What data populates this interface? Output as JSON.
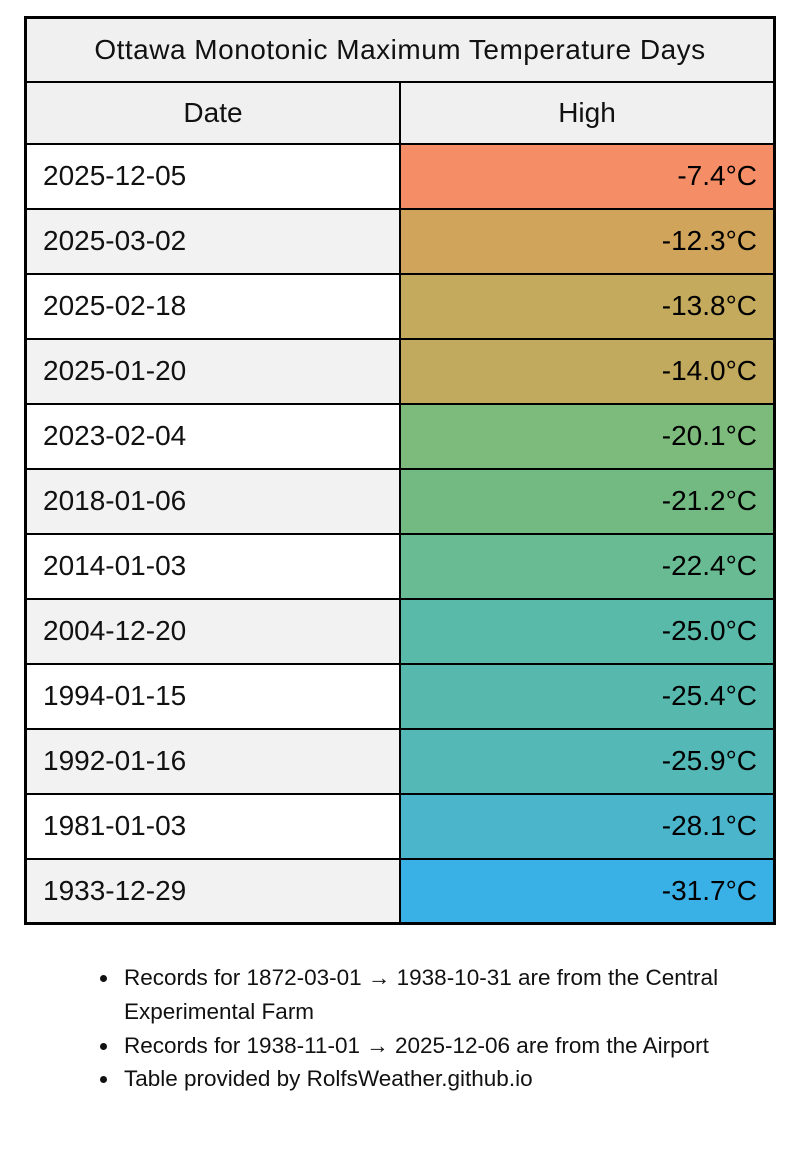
{
  "table": {
    "title": "Ottawa Monotonic Maximum Temperature Days",
    "columns": [
      "Date",
      "High"
    ],
    "rows": [
      {
        "date": "2025-12-05",
        "high": "-7.4°C",
        "color": "#F58D66"
      },
      {
        "date": "2025-03-02",
        "high": "-12.3°C",
        "color": "#D0A45A"
      },
      {
        "date": "2025-02-18",
        "high": "-13.8°C",
        "color": "#C3AA5C"
      },
      {
        "date": "2025-01-20",
        "high": "-14.0°C",
        "color": "#C1A95D"
      },
      {
        "date": "2023-02-04",
        "high": "-20.1°C",
        "color": "#7CBB7B"
      },
      {
        "date": "2018-01-06",
        "high": "-21.2°C",
        "color": "#72BA82"
      },
      {
        "date": "2014-01-03",
        "high": "-22.4°C",
        "color": "#69BB93"
      },
      {
        "date": "2004-12-20",
        "high": "-25.0°C",
        "color": "#5ABAAA"
      },
      {
        "date": "1994-01-15",
        "high": "-25.4°C",
        "color": "#57B9AE"
      },
      {
        "date": "1992-01-16",
        "high": "-25.9°C",
        "color": "#54B8B7"
      },
      {
        "date": "1981-01-03",
        "high": "-28.1°C",
        "color": "#4AB5CB"
      },
      {
        "date": "1933-12-29",
        "high": "-31.7°C",
        "color": "#39B1E7"
      }
    ]
  },
  "notes": [
    "Records for 1872-03-01 → 1938-10-31 are from the Central Experimental Farm",
    "Records for 1938-11-01 → 2025-12-06 are from the Airport",
    "Table provided by RolfsWeather.github.io"
  ],
  "colors": {
    "header_background": "#f0f0f0",
    "row_even_background": "#ffffff",
    "row_odd_background": "#f2f2f2",
    "border": "#000000",
    "text": "#111111"
  },
  "chart_data": {
    "type": "table",
    "title": "Ottawa Monotonic Maximum Temperature Days",
    "columns": [
      "Date",
      "High"
    ],
    "units": "°C",
    "rows": [
      [
        "2025-12-05",
        -7.4
      ],
      [
        "2025-03-02",
        -12.3
      ],
      [
        "2025-02-18",
        -13.8
      ],
      [
        "2025-01-20",
        -14.0
      ],
      [
        "2023-02-04",
        -20.1
      ],
      [
        "2018-01-06",
        -21.2
      ],
      [
        "2014-01-03",
        -22.4
      ],
      [
        "2004-12-20",
        -25.0
      ],
      [
        "1994-01-15",
        -25.4
      ],
      [
        "1992-01-16",
        -25.9
      ],
      [
        "1981-01-03",
        -28.1
      ],
      [
        "1933-12-29",
        -31.7
      ]
    ],
    "cell_colors": [
      "#F58D66",
      "#D0A45A",
      "#C3AA5C",
      "#C1A95D",
      "#7CBB7B",
      "#72BA82",
      "#69BB93",
      "#5ABAAA",
      "#57B9AE",
      "#54B8B7",
      "#4AB5CB",
      "#39B1E7"
    ],
    "color_encoding": "High temperature mapped warm-to-cold (salmon → gold → green → teal → blue)"
  }
}
